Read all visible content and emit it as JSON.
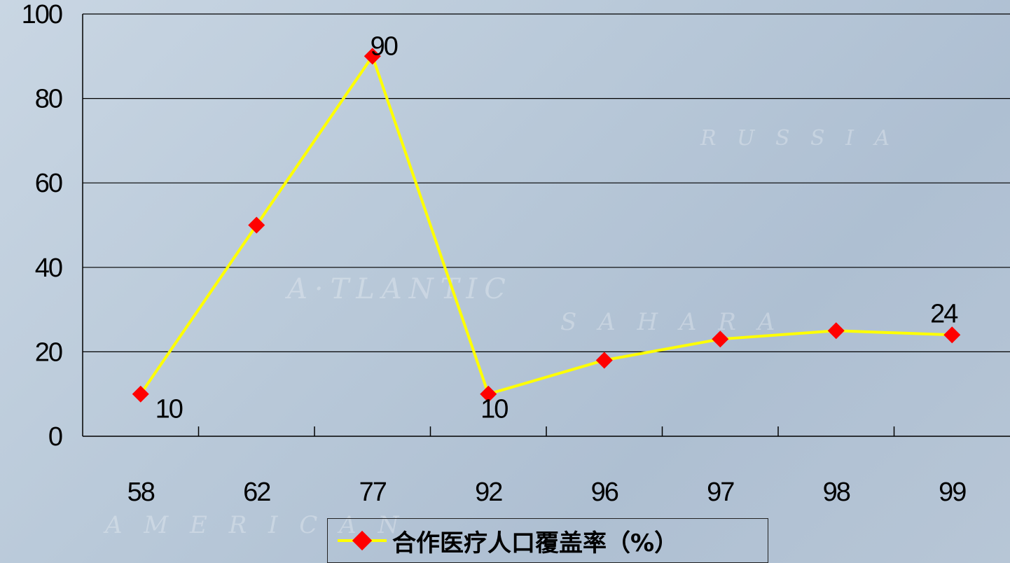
{
  "chart_data": {
    "type": "line",
    "categories": [
      "58",
      "62",
      "77",
      "92",
      "96",
      "97",
      "98",
      "99"
    ],
    "series": [
      {
        "name": "合作医疗人口覆盖率（%）",
        "values": [
          10,
          50,
          90,
          10,
          18,
          23,
          25,
          24
        ],
        "color": "#ffff00",
        "marker_color": "#ff0000"
      }
    ],
    "data_labels": [
      {
        "index": 0,
        "text": "10"
      },
      {
        "index": 2,
        "text": "90"
      },
      {
        "index": 3,
        "text": "10"
      },
      {
        "index": 7,
        "text": "24"
      }
    ],
    "y_ticks": [
      "0",
      "20",
      "40",
      "60",
      "80",
      "100"
    ],
    "ylim": [
      0,
      100
    ],
    "grid": "horizontal",
    "legend_position": "bottom"
  },
  "legend": {
    "label": "合作医疗人口覆盖率（%）"
  }
}
